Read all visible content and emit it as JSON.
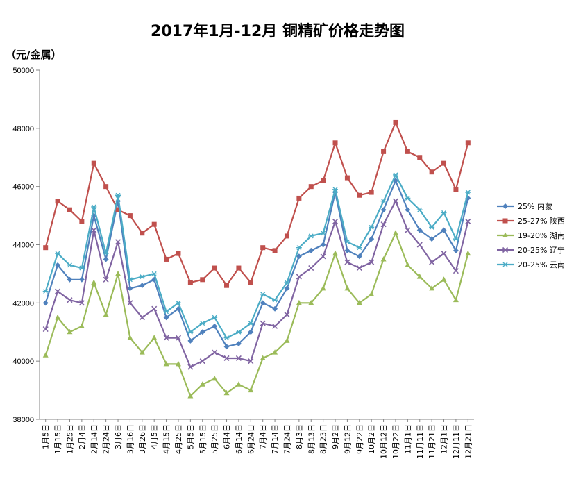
{
  "chart_data": {
    "type": "line",
    "title": "2017年1月-12月 铜精矿价格走势图",
    "ylabel": "（元/金属）",
    "xlabel": "",
    "ylim": [
      38000,
      50000
    ],
    "yticks": [
      38000,
      40000,
      42000,
      44000,
      46000,
      48000,
      50000
    ],
    "grid": false,
    "legend_position": "right",
    "categories": [
      "1月5日",
      "1月15日",
      "1月25日",
      "2月4日",
      "2月14日",
      "2月24日",
      "3月6日",
      "3月16日",
      "3月26日",
      "4月5日",
      "4月15日",
      "4月25日",
      "5月5日",
      "5月15日",
      "5月25日",
      "6月4日",
      "6月14日",
      "6月24日",
      "7月4日",
      "7月14日",
      "7月24日",
      "8月3日",
      "8月13日",
      "8月23日",
      "9月2日",
      "9月12日",
      "9月22日",
      "10月2日",
      "10月12日",
      "10月22日",
      "11月1日",
      "11月11日",
      "11月21日",
      "12月1日",
      "12月11日",
      "12月21日"
    ],
    "series": [
      {
        "name": "25% 内蒙",
        "color": "#4F81BD",
        "marker": "diamond",
        "values": [
          42000,
          43300,
          42800,
          42800,
          45000,
          43500,
          45500,
          42500,
          42600,
          42800,
          41500,
          41800,
          40700,
          41000,
          41200,
          40500,
          40600,
          41000,
          42000,
          41800,
          42500,
          43600,
          43800,
          44000,
          45800,
          43800,
          43600,
          44200,
          45200,
          46200,
          45200,
          44500,
          44200,
          44500,
          43800,
          45600
        ]
      },
      {
        "name": "25-27% 陕西",
        "color": "#C0504D",
        "marker": "square",
        "values": [
          43900,
          45500,
          45200,
          44800,
          46800,
          46000,
          45200,
          45000,
          44400,
          44700,
          43500,
          43700,
          42700,
          42800,
          43200,
          42600,
          43200,
          42700,
          43900,
          43800,
          44300,
          45600,
          46000,
          46200,
          47500,
          46300,
          45700,
          45800,
          47200,
          48200,
          47200,
          47000,
          46500,
          46800,
          45900,
          47500
        ]
      },
      {
        "name": "19-20% 湖南",
        "color": "#9BBB59",
        "marker": "triangle",
        "values": [
          40200,
          41500,
          41000,
          41200,
          42700,
          41600,
          43000,
          40800,
          40300,
          40800,
          39900,
          39900,
          38800,
          39200,
          39400,
          38900,
          39200,
          39000,
          40100,
          40300,
          40700,
          42000,
          42000,
          42500,
          43700,
          42500,
          42000,
          42300,
          43500,
          44400,
          43300,
          42900,
          42500,
          42800,
          42100,
          43700
        ]
      },
      {
        "name": "20-25% 辽宁",
        "color": "#8064A2",
        "marker": "x",
        "values": [
          41100,
          42400,
          42100,
          42000,
          44500,
          42800,
          44100,
          42000,
          41500,
          41800,
          40800,
          40800,
          39800,
          40000,
          40300,
          40100,
          40100,
          40000,
          41300,
          41200,
          41600,
          42900,
          43200,
          43600,
          44800,
          43400,
          43200,
          43400,
          44700,
          45500,
          44500,
          44000,
          43400,
          43700,
          43100,
          44800
        ]
      },
      {
        "name": "20-25% 云南",
        "color": "#4BACC6",
        "marker": "star",
        "values": [
          42400,
          43700,
          43300,
          43200,
          45300,
          43700,
          45700,
          42800,
          42900,
          43000,
          41700,
          42000,
          41000,
          41300,
          41500,
          40800,
          41000,
          41300,
          42300,
          42100,
          42700,
          43900,
          44300,
          44400,
          45900,
          44100,
          43900,
          44600,
          45500,
          46400,
          45600,
          45200,
          44600,
          45100,
          44200,
          45800
        ]
      }
    ]
  }
}
